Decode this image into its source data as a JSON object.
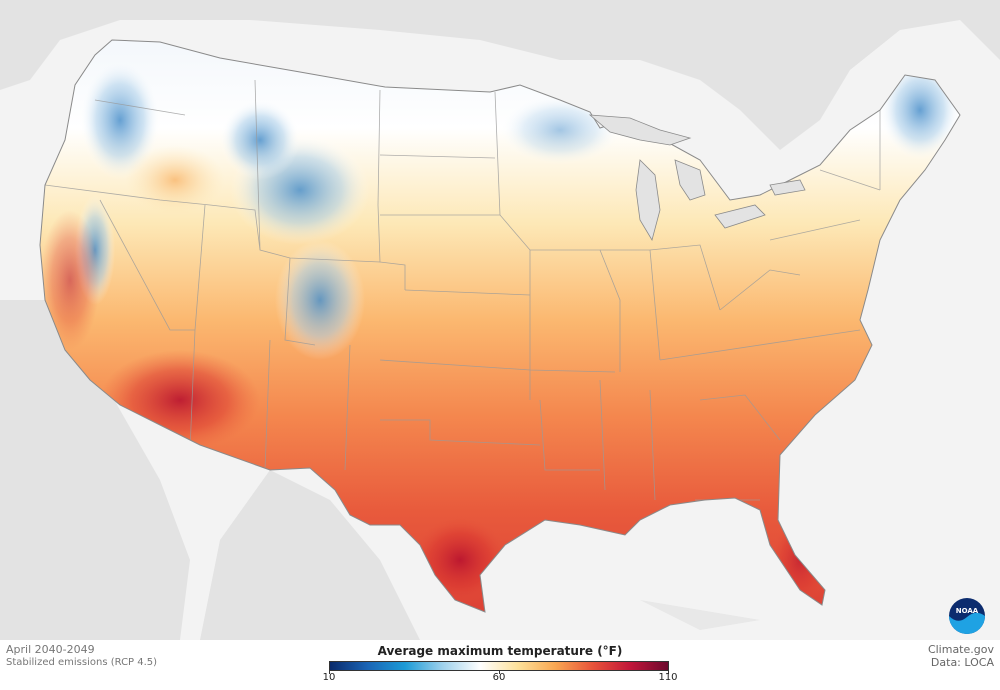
{
  "period": "April 2040-2049",
  "scenario": "Stabilized emissions (RCP 4.5)",
  "credit": {
    "site": "Climate.gov",
    "data": "Data: LOCA"
  },
  "legend": {
    "title": "Average maximum temperature (°F)",
    "min_label": "10",
    "mid_label": "60",
    "max_label": "110",
    "min_value": 10,
    "mid_value": 60,
    "max_value": 110,
    "colors": [
      "#0a2a6b",
      "#1a64b5",
      "#1d9bd6",
      "#9fd1ec",
      "#ffffff",
      "#fde19a",
      "#f9a752",
      "#e8533a",
      "#c1163a",
      "#6d0a2e"
    ]
  },
  "logo": {
    "text": "NOAA",
    "colors": [
      "#0c2c6e",
      "#1fa2e3"
    ]
  }
}
